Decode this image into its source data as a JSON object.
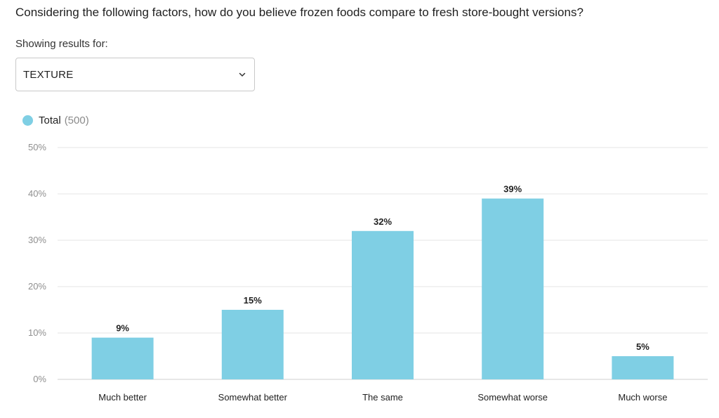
{
  "question": "Considering the following factors, how do you believe frozen foods compare to fresh store-bought versions?",
  "results_label": "Showing results for:",
  "filter": {
    "selected": "TEXTURE"
  },
  "legend": {
    "name": "Total",
    "count": "(500)"
  },
  "colors": {
    "bar": "#7fcfe4"
  },
  "chart_data": {
    "type": "bar",
    "categories": [
      "Much better",
      "Somewhat better",
      "The same",
      "Somewhat worse",
      "Much worse"
    ],
    "series": [
      {
        "name": "Total",
        "values": [
          9,
          15,
          32,
          39,
          5
        ],
        "labels": [
          "9%",
          "15%",
          "32%",
          "39%",
          "5%"
        ]
      }
    ],
    "ylim": [
      0,
      50
    ],
    "yticks": [
      "0%",
      "10%",
      "20%",
      "30%",
      "40%",
      "50%"
    ],
    "grid": true,
    "legend_position": "top-left"
  }
}
